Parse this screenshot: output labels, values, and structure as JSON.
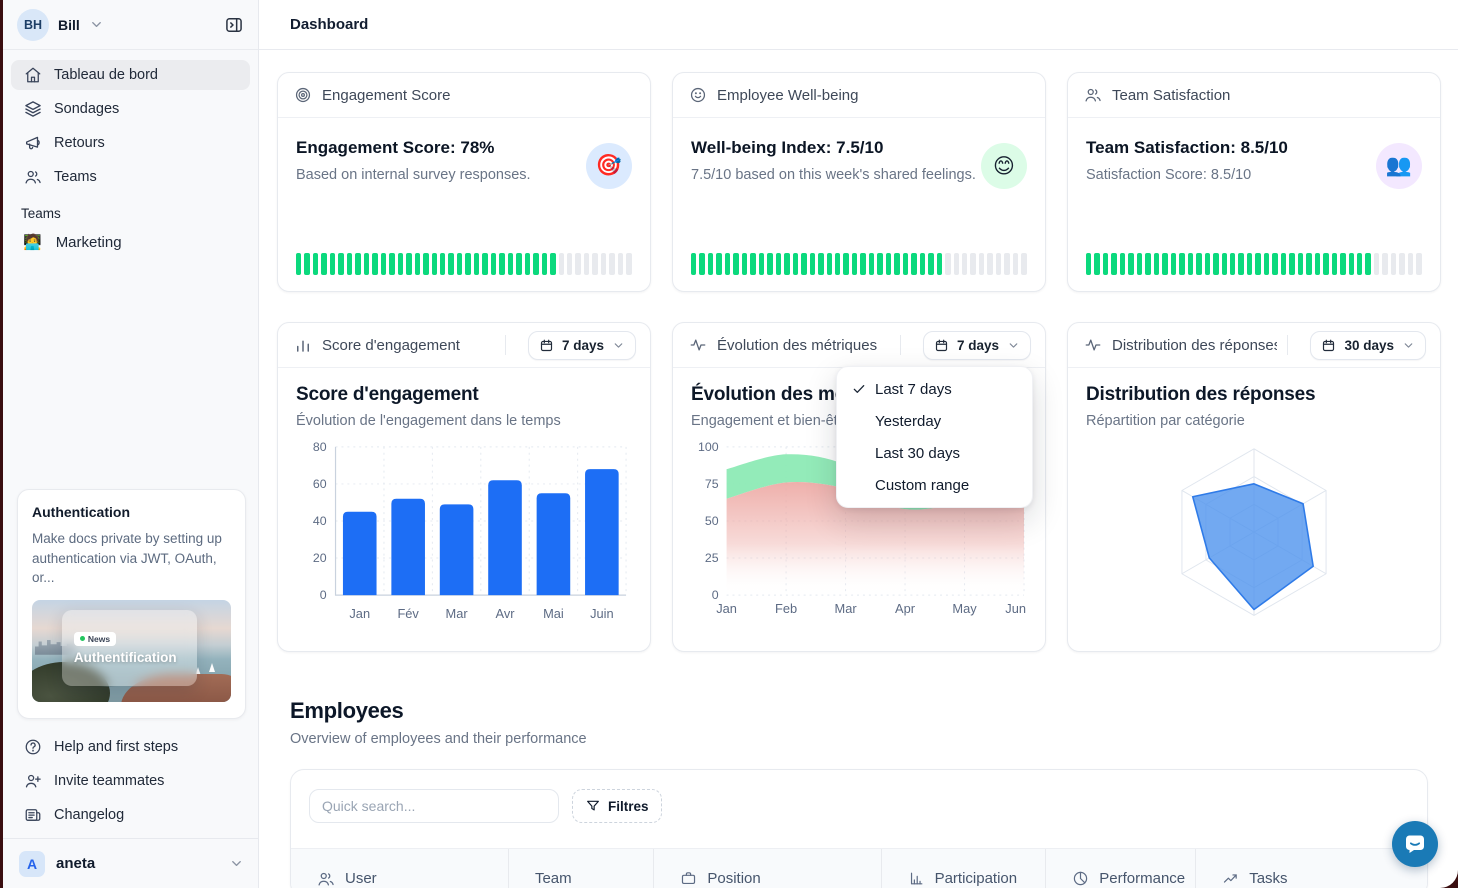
{
  "header": {
    "title": "Dashboard"
  },
  "sidebar": {
    "user": {
      "initials": "BH",
      "name": "Bill"
    },
    "nav": [
      {
        "label": "Tableau de bord",
        "icon": "home",
        "active": true
      },
      {
        "label": "Sondages",
        "icon": "layers",
        "active": false
      },
      {
        "label": "Retours",
        "icon": "megaphone",
        "active": false
      },
      {
        "label": "Teams",
        "icon": "users",
        "active": false
      }
    ],
    "teams_section": {
      "label": "Teams",
      "items": [
        {
          "label": "Marketing",
          "emoji": "🧑‍💻"
        }
      ]
    },
    "promo_card": {
      "title": "Authentication",
      "body": "Make docs private by setting up authentication via JWT, OAuth, or...",
      "image_badge": "News",
      "image_title": "Authentification"
    },
    "footer_nav": [
      {
        "label": "Help and first steps",
        "icon": "help"
      },
      {
        "label": "Invite teammates",
        "icon": "user-plus"
      },
      {
        "label": "Changelog",
        "icon": "newspaper"
      }
    ],
    "workspace": {
      "initial": "A",
      "name": "aneta"
    }
  },
  "metric_cards": [
    {
      "header": "Engagement Score",
      "icon": "target",
      "title": "Engagement Score: 78%",
      "subtitle": "Based on internal survey responses.",
      "emoji": "🎯",
      "emoji_bg": "#dbeafe",
      "progress_pct": 78
    },
    {
      "header": "Employee Well-being",
      "icon": "smile",
      "title": "Well-being Index: 7.5/10",
      "subtitle": "7.5/10 based on this week's shared feelings.",
      "emoji": "😊",
      "emoji_bg": "#dcfce7",
      "progress_pct": 75
    },
    {
      "header": "Team Satisfaction",
      "icon": "users",
      "title": "Team Satisfaction: 8.5/10",
      "subtitle": "Satisfaction Score: 8.5/10",
      "emoji": "👥",
      "emoji_bg": "#f3e8ff",
      "progress_pct": 85
    }
  ],
  "chart_cards": [
    {
      "header": "Score d'engagement",
      "icon": "bar-chart",
      "range": "7 days"
    },
    {
      "header": "Évolution des métriques",
      "icon": "activity",
      "range": "7 days"
    },
    {
      "header": "Distribution des réponses",
      "icon": "activity",
      "range": "30 days"
    }
  ],
  "dropdown_menu": {
    "items": [
      {
        "label": "Last 7 days",
        "checked": true
      },
      {
        "label": "Yesterday",
        "checked": false
      },
      {
        "label": "Last 30 days",
        "checked": false
      },
      {
        "label": "Custom range",
        "checked": false
      }
    ]
  },
  "chart_data": [
    {
      "type": "bar",
      "title": "Score d'engagement",
      "subtitle": "Évolution de l'engagement dans le temps",
      "categories": [
        "Jan",
        "Fév",
        "Mar",
        "Avr",
        "Mai",
        "Juin"
      ],
      "values": [
        45,
        52,
        49,
        62,
        55,
        68
      ],
      "ylim": [
        0,
        80
      ],
      "yticks": [
        0,
        20,
        40,
        60,
        80
      ],
      "bar_color": "#1d6ef5",
      "grid": true
    },
    {
      "type": "area",
      "title": "Évolution des métriques",
      "subtitle": "Engagement et bien-être",
      "categories": [
        "Jan",
        "Feb",
        "Mar",
        "Apr",
        "May",
        "Jun"
      ],
      "ylim": [
        0,
        100
      ],
      "yticks": [
        0,
        25,
        50,
        75,
        100
      ],
      "series": [
        {
          "name": "Engagement",
          "values": [
            85,
            95,
            88,
            63,
            72,
            80
          ],
          "color": "#8deab5"
        },
        {
          "name": "Bien-être",
          "values": [
            65,
            76,
            72,
            58,
            62,
            66
          ],
          "color": "#eda9a4"
        }
      ],
      "grid": true
    },
    {
      "type": "radar",
      "title": "Distribution des réponses",
      "subtitle": "Répartition par catégorie",
      "axes_count": 6,
      "max": 100,
      "values": [
        58,
        68,
        82,
        93,
        62,
        85
      ],
      "fill": "#4f94ee",
      "stroke": "#2f7be8",
      "grid_levels": 3
    }
  ],
  "employees": {
    "title": "Employees",
    "subtitle": "Overview of employees and their performance",
    "search_placeholder": "Quick search...",
    "filter_label": "Filtres",
    "columns": [
      {
        "label": "User",
        "icon": "users"
      },
      {
        "label": "Team",
        "icon": ""
      },
      {
        "label": "Position",
        "icon": "briefcase"
      },
      {
        "label": "Participation",
        "icon": "bar-chart-2"
      },
      {
        "label": "Performance",
        "icon": "pie-chart"
      },
      {
        "label": "Tasks",
        "icon": "trend-up"
      }
    ]
  },
  "colors": {
    "progress_green": "#0bd97d",
    "bar_blue": "#1d6ef5",
    "chat_blue": "#1a7ab6"
  }
}
